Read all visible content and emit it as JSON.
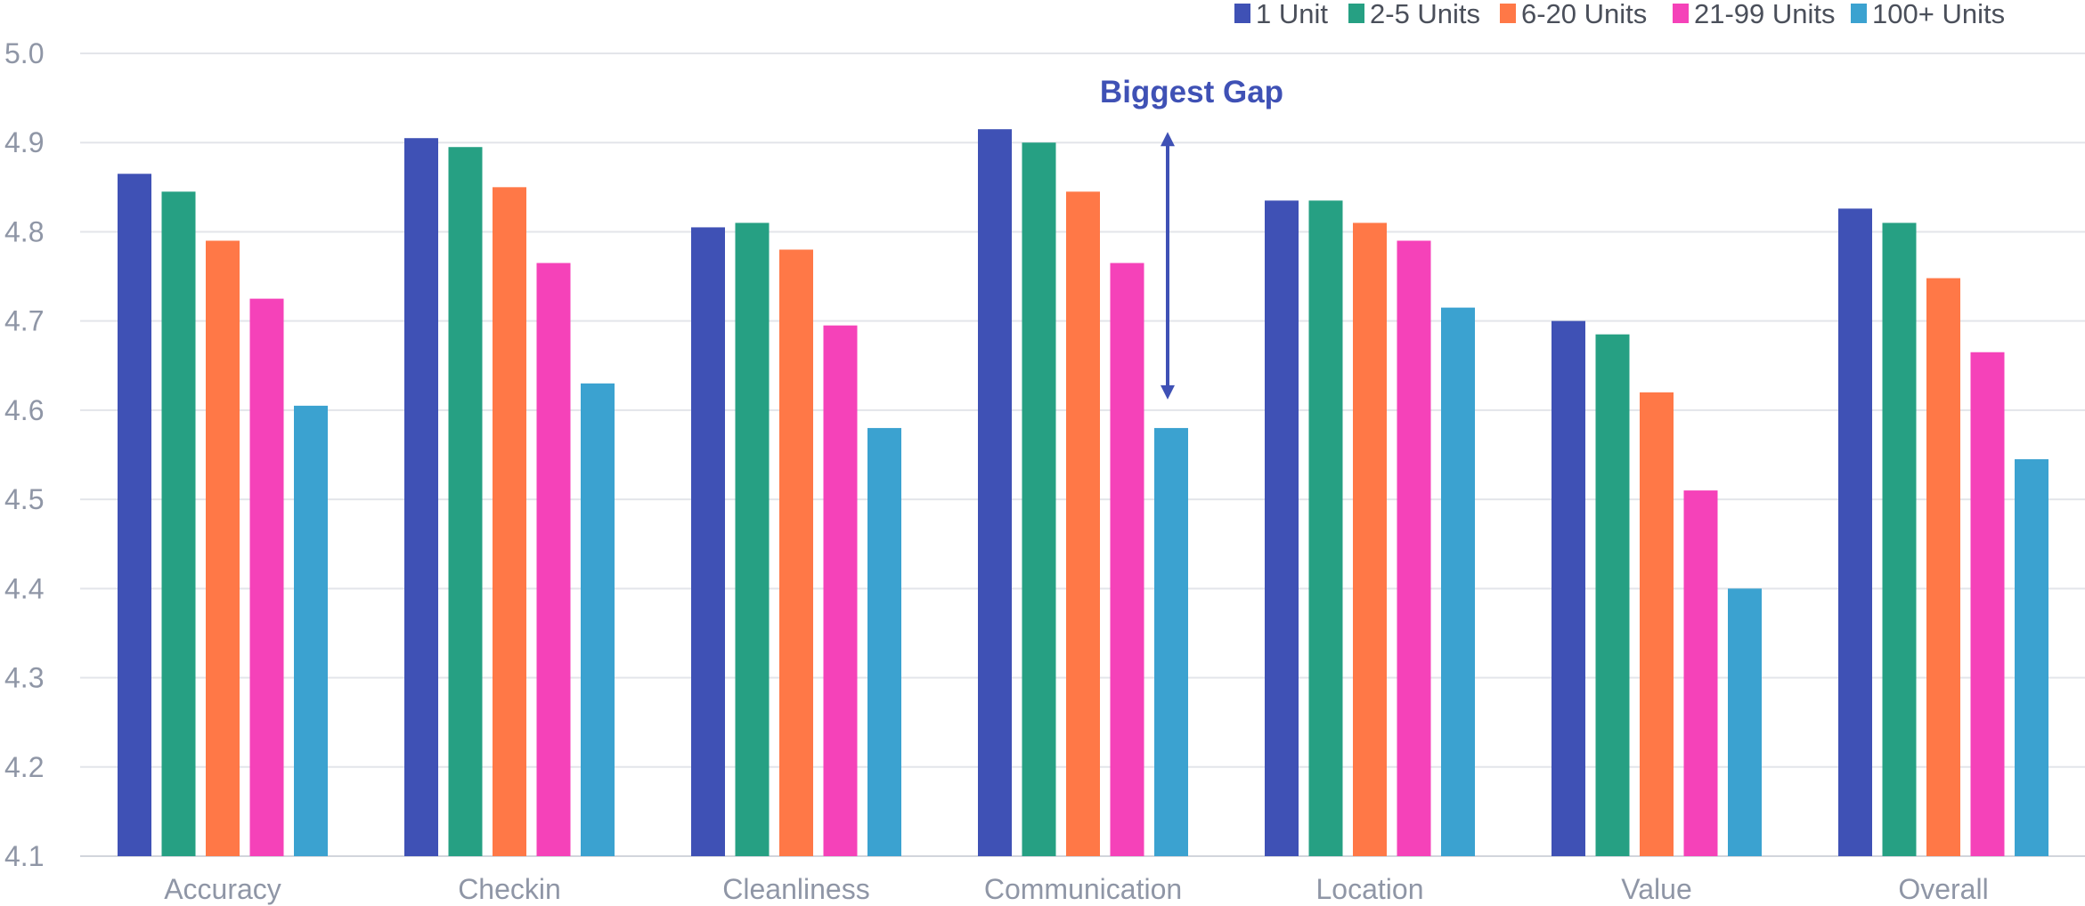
{
  "chart_data": {
    "type": "bar",
    "title": "",
    "xlabel": "",
    "ylabel": "",
    "ylim": [
      4.1,
      5.0
    ],
    "yticks": [
      "4.1",
      "4.2",
      "4.3",
      "4.4",
      "4.5",
      "4.6",
      "4.7",
      "4.8",
      "4.9",
      "5.0"
    ],
    "grid": "horizontal",
    "legend_position": "top-right",
    "categories": [
      "Accuracy",
      "Checkin",
      "Cleanliness",
      "Communication",
      "Location",
      "Value",
      "Overall"
    ],
    "series": [
      {
        "name": "1 Unit",
        "color": "#3f51b5",
        "values": [
          4.865,
          4.905,
          4.805,
          4.915,
          4.835,
          4.7,
          4.826
        ]
      },
      {
        "name": "2-5 Units",
        "color": "#26a083",
        "values": [
          4.845,
          4.895,
          4.81,
          4.9,
          4.835,
          4.685,
          4.81
        ]
      },
      {
        "name": "6-20 Units",
        "color": "#ff7847",
        "values": [
          4.79,
          4.85,
          4.78,
          4.845,
          4.81,
          4.62,
          4.748
        ]
      },
      {
        "name": "21-99 Units",
        "color": "#f542b9",
        "values": [
          4.725,
          4.765,
          4.695,
          4.765,
          4.79,
          4.51,
          4.665
        ]
      },
      {
        "name": "100+ Units",
        "color": "#3ba2d0",
        "values": [
          4.605,
          4.63,
          4.58,
          4.58,
          4.715,
          4.4,
          4.545
        ]
      }
    ],
    "annotation": {
      "text": "Biggest Gap",
      "color": "#3f51b5",
      "category": "Communication",
      "from_value": 4.6,
      "to_value": 4.9
    }
  }
}
